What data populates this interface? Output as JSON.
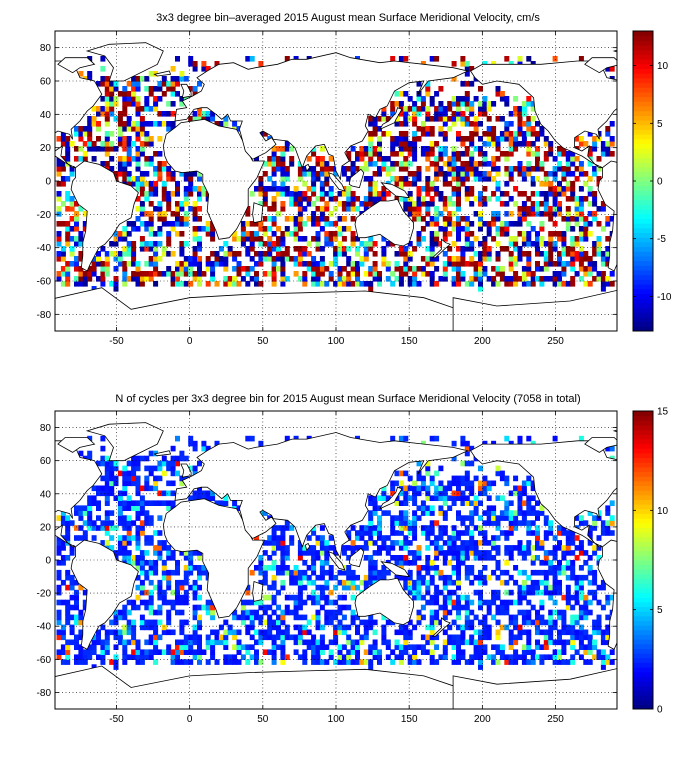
{
  "panels": [
    {
      "title": "3x3 degree bin–averaged 2015 August mean Surface Meridional Velocity, cm/s",
      "x_ticks": [
        "-50",
        "0",
        "50",
        "100",
        "150",
        "200",
        "250"
      ],
      "y_ticks": [
        "80",
        "60",
        "40",
        "20",
        "0",
        "-20",
        "-40",
        "-60",
        "-80"
      ],
      "colorbar_ticks": [
        "10",
        "5",
        "0",
        "-5",
        "-10"
      ]
    },
    {
      "title": "N of cycles per 3x3 degree bin for 2015 August mean Surface Meridional Velocity (7058 in total)",
      "x_ticks": [
        "-50",
        "0",
        "50",
        "100",
        "150",
        "200",
        "250"
      ],
      "y_ticks": [
        "80",
        "60",
        "40",
        "20",
        "0",
        "-20",
        "-40",
        "-60",
        "-80"
      ],
      "colorbar_ticks": [
        "15",
        "10",
        "5",
        "0"
      ]
    }
  ],
  "chart_data": [
    {
      "type": "heatmap",
      "title": "3x3 degree bin–averaged 2015 August mean Surface Meridional Velocity, cm/s",
      "xlim": [
        -92,
        292
      ],
      "ylim": [
        -90,
        90
      ],
      "x_ticks": [
        -50,
        0,
        50,
        100,
        150,
        200,
        250
      ],
      "y_ticks": [
        -80,
        -60,
        -40,
        -20,
        0,
        20,
        40,
        60,
        80
      ],
      "color_range": [
        -13,
        13
      ],
      "colormap": "jet",
      "grid": true,
      "bin_size_deg": 3
    },
    {
      "type": "heatmap",
      "title": "N of cycles per 3x3 degree bin for 2015 August mean Surface Meridional Velocity (7058 in total)",
      "xlim": [
        -92,
        292
      ],
      "ylim": [
        -90,
        90
      ],
      "x_ticks": [
        -50,
        0,
        50,
        100,
        150,
        200,
        250
      ],
      "y_ticks": [
        -80,
        -60,
        -40,
        -20,
        0,
        20,
        40,
        60,
        80
      ],
      "color_range": [
        0,
        15
      ],
      "colormap": "jet",
      "grid": true,
      "bin_size_deg": 3,
      "total_cycles": 7058
    }
  ]
}
